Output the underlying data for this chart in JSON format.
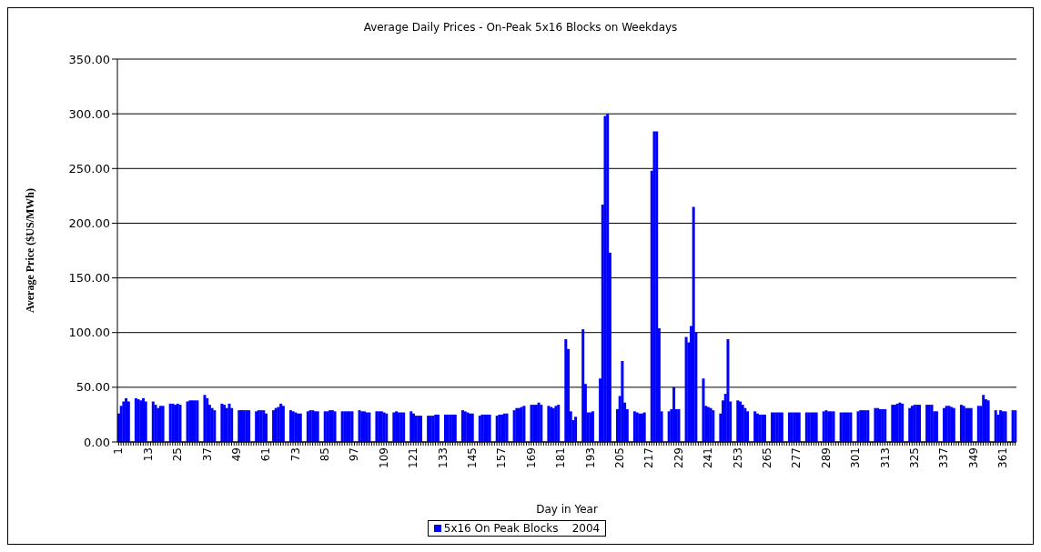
{
  "chart_data": {
    "type": "bar",
    "title": "Average Daily Prices - On-Peak 5x16 Blocks on Weekdays",
    "xlabel": "Day in Year",
    "ylabel": "Average Price ($US/MWh)",
    "categories": [
      "1",
      null,
      null,
      null,
      null,
      null,
      null,
      null,
      null,
      null,
      null,
      null,
      "13",
      null,
      null,
      null,
      null,
      null,
      null,
      null,
      null,
      null,
      null,
      null,
      "25",
      null,
      null,
      null,
      null,
      null,
      null,
      null,
      null,
      null,
      null,
      null,
      "37",
      null,
      null,
      null,
      null,
      null,
      null,
      null,
      null,
      null,
      null,
      null,
      "49",
      null,
      null,
      null,
      null,
      null,
      null,
      null,
      null,
      null,
      null,
      null,
      "61",
      null,
      null,
      null,
      null,
      null,
      null,
      null,
      null,
      null,
      null,
      null,
      "73",
      null,
      null,
      null,
      null,
      null,
      null,
      null,
      null,
      null,
      null,
      null,
      "85",
      null,
      null,
      null,
      null,
      null,
      null,
      null,
      null,
      null,
      null,
      null,
      "97",
      null,
      null,
      null,
      null,
      null,
      null,
      null,
      null,
      null,
      null,
      null,
      "109",
      null,
      null,
      null,
      null,
      null,
      null,
      null,
      null,
      null,
      null,
      null,
      "121",
      null,
      null,
      null,
      null,
      null,
      null,
      null,
      null,
      null,
      null,
      null,
      "133",
      null,
      null,
      null,
      null,
      null,
      null,
      null,
      null,
      null,
      null,
      null,
      "145",
      null,
      null,
      null,
      null,
      null,
      null,
      null,
      null,
      null,
      null,
      null,
      "157",
      null,
      null,
      null,
      null,
      null,
      null,
      null,
      null,
      null,
      null,
      null,
      "169",
      null,
      null,
      null,
      null,
      null,
      null,
      null,
      null,
      null,
      null,
      null,
      "181",
      null,
      null,
      null,
      null,
      null,
      null,
      null,
      null,
      null,
      null,
      null,
      "193",
      null,
      null,
      null,
      null,
      null,
      null,
      null,
      null,
      null,
      null,
      null,
      "205",
      null,
      null,
      null,
      null,
      null,
      null,
      null,
      null,
      null,
      null,
      null,
      "217",
      null,
      null,
      null,
      null,
      null,
      null,
      null,
      null,
      null,
      null,
      null,
      "229",
      null,
      null,
      null,
      null,
      null,
      null,
      null,
      null,
      null,
      null,
      null,
      "241",
      null,
      null,
      null,
      null,
      null,
      null,
      null,
      null,
      null,
      null,
      null,
      "253",
      null,
      null,
      null,
      null,
      null,
      null,
      null,
      null,
      null,
      null,
      null,
      "265",
      null,
      null,
      null,
      null,
      null,
      null,
      null,
      null,
      null,
      null,
      null,
      "277",
      null,
      null,
      null,
      null,
      null,
      null,
      null,
      null,
      null,
      null,
      null,
      "289",
      null,
      null,
      null,
      null,
      null,
      null,
      null,
      null,
      null,
      null,
      null,
      "301",
      null,
      null,
      null,
      null,
      null,
      null,
      null,
      null,
      null,
      null,
      null,
      "313",
      null,
      null,
      null,
      null,
      null,
      null,
      null,
      null,
      null,
      null,
      null,
      "325",
      null,
      null,
      null,
      null,
      null,
      null,
      null,
      null,
      null,
      null,
      null,
      "337",
      null,
      null,
      null,
      null,
      null,
      null,
      null,
      null,
      null,
      null,
      null,
      "349",
      null,
      null,
      null,
      null,
      null,
      null,
      null,
      null,
      null,
      null,
      null,
      "361",
      null,
      null,
      null,
      null,
      null
    ],
    "series": [
      {
        "name": "5x16 On Peak Blocks    2004",
        "color": "#0000ff",
        "values": [
          26,
          33,
          37,
          40,
          37,
          null,
          null,
          40,
          39,
          38,
          40,
          37,
          null,
          null,
          37,
          34,
          31,
          33,
          33,
          null,
          null,
          35,
          35,
          34,
          35,
          34,
          null,
          null,
          37,
          38,
          38,
          38,
          38,
          null,
          null,
          43,
          40,
          34,
          31,
          29,
          null,
          null,
          35,
          34,
          31,
          35,
          31,
          null,
          null,
          29,
          29,
          29,
          29,
          29,
          null,
          null,
          28,
          29,
          29,
          29,
          26,
          null,
          null,
          29,
          31,
          32,
          35,
          33,
          null,
          null,
          29,
          28,
          27,
          26,
          26,
          null,
          null,
          28,
          29,
          29,
          28,
          28,
          null,
          null,
          28,
          28,
          29,
          29,
          28,
          null,
          null,
          28,
          28,
          28,
          28,
          28,
          null,
          null,
          29,
          28,
          28,
          27,
          27,
          null,
          null,
          28,
          28,
          28,
          27,
          26,
          null,
          null,
          27,
          28,
          27,
          27,
          27,
          null,
          null,
          28,
          26,
          24,
          24,
          24,
          null,
          null,
          24,
          24,
          24,
          25,
          25,
          null,
          null,
          25,
          25,
          25,
          25,
          25,
          null,
          null,
          29,
          28,
          27,
          26,
          26,
          null,
          null,
          24,
          25,
          25,
          25,
          25,
          null,
          null,
          24,
          25,
          25,
          26,
          26,
          null,
          null,
          29,
          31,
          31,
          32,
          33,
          null,
          null,
          34,
          34,
          34,
          36,
          34,
          null,
          null,
          33,
          32,
          31,
          33,
          34,
          null,
          null,
          94,
          85,
          28,
          20,
          23,
          null,
          null,
          103,
          53,
          27,
          27,
          28,
          null,
          null,
          58,
          217,
          298,
          300,
          173,
          null,
          null,
          30,
          42,
          74,
          36,
          30,
          null,
          null,
          28,
          27,
          26,
          26,
          27,
          null,
          null,
          248,
          284,
          284,
          104,
          28,
          null,
          null,
          28,
          30,
          50,
          30,
          30,
          null,
          null,
          96,
          91,
          106,
          215,
          100,
          null,
          null,
          58,
          33,
          32,
          31,
          29,
          null,
          null,
          26,
          38,
          44,
          94,
          37,
          null,
          null,
          38,
          37,
          34,
          31,
          28,
          null,
          null,
          28,
          26,
          25,
          25,
          25,
          null,
          null,
          27,
          27,
          27,
          27,
          27,
          null,
          null,
          27,
          27,
          27,
          27,
          27,
          null,
          null,
          27,
          27,
          27,
          27,
          27,
          null,
          null,
          28,
          29,
          28,
          28,
          28,
          null,
          null,
          27,
          27,
          27,
          27,
          27,
          null,
          null,
          28,
          29,
          29,
          29,
          29,
          null,
          null,
          31,
          31,
          30,
          30,
          30,
          null,
          null,
          34,
          34,
          35,
          36,
          35,
          null,
          null,
          31,
          33,
          34,
          34,
          34,
          null,
          null,
          34,
          34,
          34,
          28,
          28,
          null,
          null,
          31,
          33,
          33,
          32,
          31,
          null,
          null,
          34,
          33,
          31,
          31,
          31,
          null,
          null,
          33,
          33,
          43,
          39,
          38,
          null,
          null,
          29,
          25,
          29,
          28,
          28,
          null,
          null,
          29,
          29
        ]
      }
    ],
    "ylim": [
      0,
      350
    ],
    "yticks": [
      {
        "value": 0,
        "label": "0.00"
      },
      {
        "value": 50,
        "label": "50.00"
      },
      {
        "value": 100,
        "label": "100.00"
      },
      {
        "value": 150,
        "label": "150.00"
      },
      {
        "value": 200,
        "label": "200.00"
      },
      {
        "value": 250,
        "label": "250.00"
      },
      {
        "value": 300,
        "label": "300.00"
      },
      {
        "value": 350,
        "label": "350.00"
      }
    ],
    "grid": "y",
    "legend": "bottom"
  }
}
